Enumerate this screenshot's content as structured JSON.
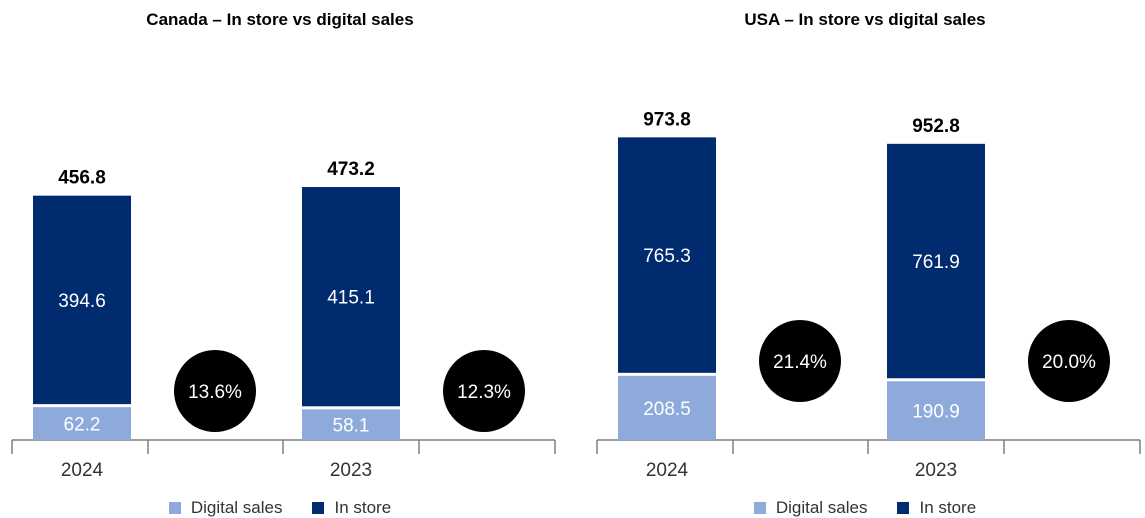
{
  "colors": {
    "digital": "#8eaadb",
    "in_store": "#002b6f",
    "bubble": "#000000",
    "axis": "#7f7f7f"
  },
  "chart_data": [
    {
      "type": "bar",
      "stacked": true,
      "title": "Canada – In store vs digital sales",
      "categories": [
        "2024",
        "2023"
      ],
      "series": [
        {
          "name": "Digital sales",
          "values": [
            62.2,
            58.1
          ]
        },
        {
          "name": "In store",
          "values": [
            394.6,
            415.1
          ]
        }
      ],
      "totals": [
        "456.8",
        "473.2"
      ],
      "bubbles": [
        "13.6%",
        "12.3%"
      ],
      "legend": [
        "Digital sales",
        "In store"
      ],
      "legend_position": "bottom",
      "grid": false
    },
    {
      "type": "bar",
      "stacked": true,
      "title": "USA – In store vs digital sales",
      "categories": [
        "2024",
        "2023"
      ],
      "series": [
        {
          "name": "Digital sales",
          "values": [
            208.5,
            190.9
          ]
        },
        {
          "name": "In store",
          "values": [
            765.3,
            761.9
          ]
        }
      ],
      "totals": [
        "973.8",
        "952.8"
      ],
      "bubbles": [
        "21.4%",
        "20.0%"
      ],
      "legend": [
        "Digital sales",
        "In store"
      ],
      "legend_position": "bottom",
      "grid": false
    }
  ]
}
